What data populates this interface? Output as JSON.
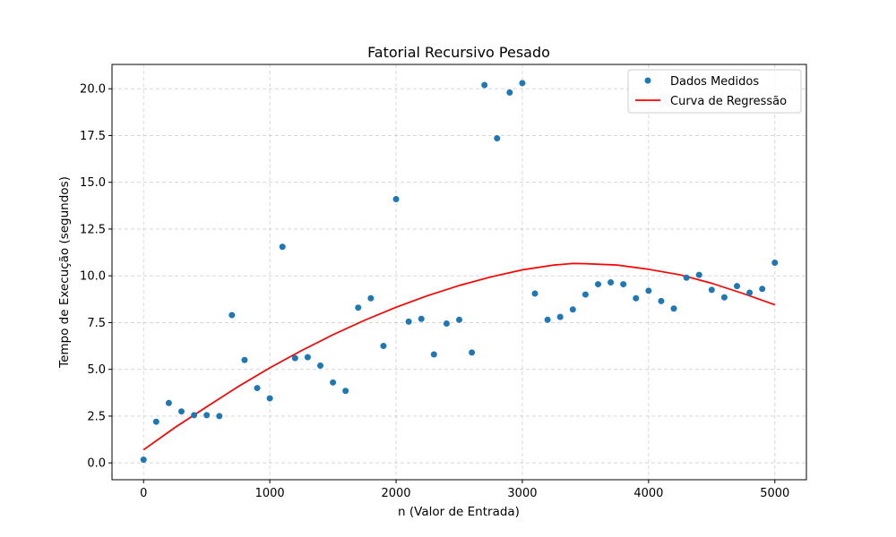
{
  "chart_data": {
    "type": "scatter",
    "title": "Fatorial Recursivo Pesado",
    "xlabel": "n (Valor de Entrada)",
    "ylabel": "Tempo de Execução (segundos)",
    "xlim": [
      -250,
      5250
    ],
    "ylim": [
      -0.9,
      21.3
    ],
    "xticks": [
      0,
      1000,
      2000,
      3000,
      4000,
      5000
    ],
    "xtick_labels": [
      "0",
      "1000",
      "2000",
      "3000",
      "4000",
      "5000"
    ],
    "yticks": [
      0,
      2.5,
      5,
      7.5,
      10,
      12.5,
      15,
      17.5,
      20
    ],
    "ytick_labels": [
      "0.0",
      "2.5",
      "5.0",
      "7.5",
      "10.0",
      "12.5",
      "15.0",
      "17.5",
      "20.0"
    ],
    "grid": true,
    "legend_position": "top-right",
    "series": [
      {
        "name": "Dados Medidos",
        "kind": "scatter",
        "color": "#1f77b4",
        "x": [
          0,
          100,
          200,
          300,
          400,
          500,
          600,
          700,
          800,
          900,
          1000,
          1100,
          1200,
          1300,
          1400,
          1500,
          1600,
          1700,
          1800,
          1900,
          2000,
          2100,
          2200,
          2300,
          2400,
          2500,
          2600,
          2700,
          2800,
          2900,
          3000,
          3100,
          3200,
          3300,
          3400,
          3500,
          3600,
          3700,
          3800,
          3900,
          4000,
          4100,
          4200,
          4300,
          4400,
          4500,
          4600,
          4700,
          4800,
          4900,
          5000
        ],
        "y": [
          0.17,
          2.2,
          3.2,
          2.75,
          2.55,
          2.55,
          2.5,
          7.9,
          5.5,
          4.0,
          3.45,
          11.55,
          5.6,
          5.65,
          5.2,
          4.3,
          3.85,
          8.3,
          8.8,
          6.25,
          14.1,
          7.55,
          7.7,
          5.8,
          7.45,
          7.65,
          5.9,
          20.2,
          17.35,
          19.8,
          20.3,
          9.05,
          7.65,
          7.8,
          8.2,
          9.0,
          9.55,
          9.65,
          9.55,
          8.8,
          9.2,
          8.65,
          8.25,
          9.9,
          10.05,
          9.25,
          8.85,
          9.45,
          9.1,
          9.3,
          10.7
        ]
      },
      {
        "name": "Curva de Regressão",
        "kind": "line",
        "color": "#ff0000",
        "x": [
          0,
          250,
          500,
          750,
          1000,
          1250,
          1500,
          1750,
          2000,
          2250,
          2500,
          2750,
          3000,
          3250,
          3400,
          3500,
          3750,
          4000,
          4250,
          4500,
          4750,
          5000
        ],
        "y": [
          0.7,
          1.9,
          3.0,
          4.08,
          5.08,
          6.0,
          6.85,
          7.62,
          8.32,
          8.94,
          9.48,
          9.94,
          10.32,
          10.58,
          10.66,
          10.65,
          10.58,
          10.35,
          10.05,
          9.6,
          9.05,
          8.45
        ]
      }
    ]
  }
}
